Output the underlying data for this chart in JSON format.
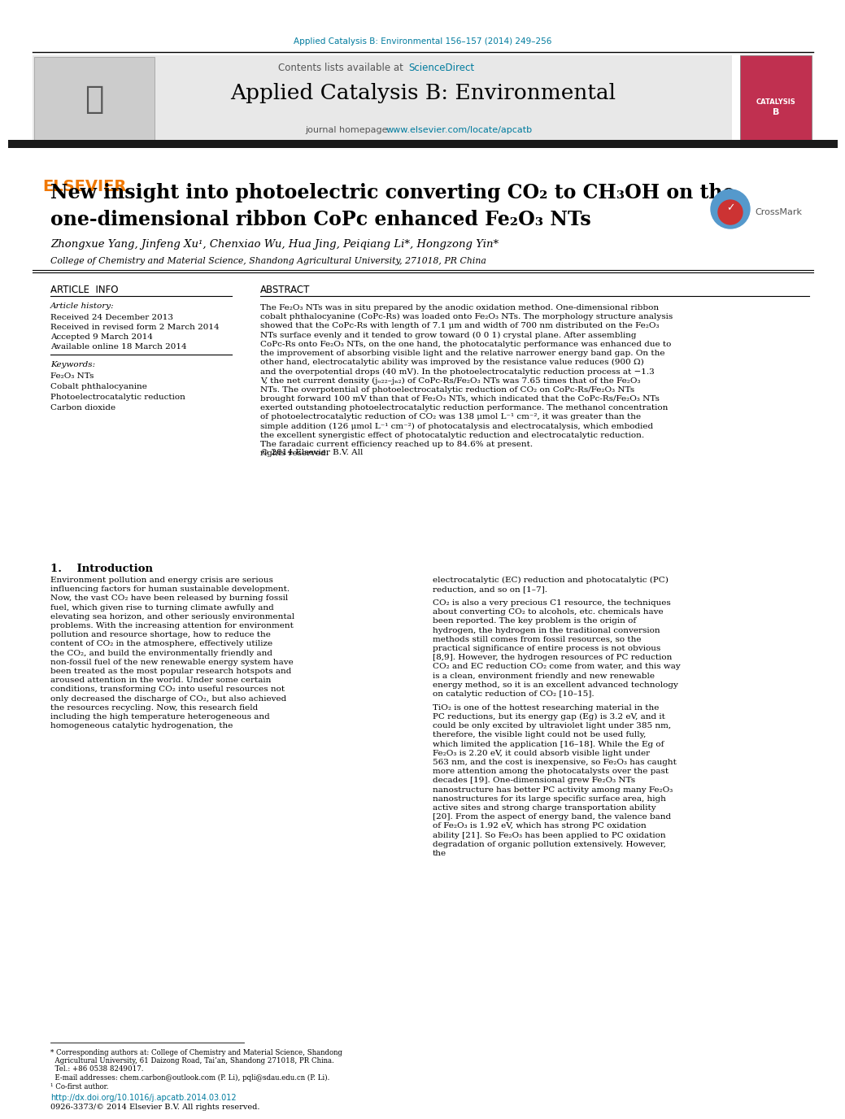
{
  "bg_color": "#ffffff",
  "top_citation": "Applied Catalysis B: Environmental 156–157 (2014) 249–256",
  "journal_name": "Applied Catalysis B: Environmental",
  "contents_text": "Contents lists available at ",
  "sciencedirect_link": "ScienceDirect",
  "sciencedirect_color": "#007b9e",
  "homepage_prefix": "journal homepage: ",
  "homepage_url": "www.elsevier.com/locate/apcatb",
  "elsevier_color": "#f07800",
  "header_bg": "#e8e8e8",
  "dark_bar_color": "#1a1a1a",
  "title_line1": "New insight into photoelectric converting CO₂ to CH₃OH on the",
  "title_line2": "one-dimensional ribbon CoPc enhanced Fe₂O₃ NTs",
  "authors": "Zhongxue Yang, Jinfeng Xu¹, Chenxiao Wu, Hua Jing, Peiqiang Li*, Hongzong Yin*",
  "affiliation": "College of Chemistry and Material Science, Shandong Agricultural University, 271018, PR China",
  "article_info_title": "ARTICLE  INFO",
  "abstract_title": "ABSTRACT",
  "article_history_label": "Article history:",
  "received": "Received 24 December 2013",
  "revised": "Received in revised form 2 March 2014",
  "accepted": "Accepted 9 March 2014",
  "available": "Available online 18 March 2014",
  "keywords_label": "Keywords:",
  "keywords": [
    "Fe₂O₃ NTs",
    "Cobalt phthalocyanine",
    "Photoelectrocatalytic reduction",
    "Carbon dioxide"
  ],
  "abstract_text": "The Fe₂O₃ NTs was in situ prepared by the anodic oxidation method. One-dimensional ribbon cobalt phthalocyanine (CoPc-Rs) was loaded onto Fe₂O₃ NTs. The morphology structure analysis showed that the CoPc-Rs with length of 7.1 μm and width of 700 nm distributed on the Fe₂O₃ NTs surface evenly and it tended to grow toward (0 0 1) crystal plane. After assembling CoPc-Rs onto Fe₂O₃ NTs, on the one hand, the photocatalytic performance was enhanced due to the improvement of absorbing visible light and the relative narrower energy band gap. On the other hand, electrocatalytic ability was improved by the resistance value reduces (900 Ω) and the overpotential drops (40 mV). In the photoelectrocatalytic reduction process at −1.3 V, the net current density (jₒ₂₂–jₙ₂) of CoPc-Rs/Fe₂O₃ NTs was 7.65 times that of the Fe₂O₃ NTs. The overpotential of photoelectrocatalytic reduction of CO₂ on CoPc-Rs/Fe₂O₃ NTs brought forward 100 mV than that of Fe₂O₃ NTs, which indicated that the CoPc-Rs/Fe₂O₃ NTs exerted outstanding photoelectrocatalytic reduction performance. The methanol concentration of photoelectrocatalytic reduction of CO₂ was 138 μmol L⁻¹ cm⁻², it was greater than the simple addition (126 μmol L⁻¹ cm⁻²) of photocatalysis and electrocatalysis, which embodied the excellent synergistic effect of photocatalytic reduction and electrocatalytic reduction. The faradaic current efficiency reached up to 84.6% at present.\n© 2014 Elsevier B.V. All rights reserved.",
  "intro_title": "1.    Introduction",
  "intro_col1": "    Environment pollution and energy crisis are serious influencing factors for human sustainable development. Now, the vast CO₂ have been released by burning fossil fuel, which given rise to turning climate awfully and elevating sea horizon, and other seriously environmental problems. With the increasing attention for environment pollution and resource shortage, how to reduce the content of CO₂ in the atmosphere, effectively utilize the CO₂, and build the environmentally friendly and non-fossil fuel of the new renewable energy system have been treated as the most popular research hotspots and aroused attention in the world. Under some certain conditions, transforming CO₂ into useful resources not only decreased the discharge of CO₂, but also achieved the resources recycling. Now, this research field including the high temperature heterogeneous and homogeneous catalytic hydrogenation, the",
  "intro_col2_p1": "electrocatalytic (EC) reduction and photocatalytic (PC) reduction, and so on [1–7].",
  "intro_col2_p2": "    CO₂ is also a very precious C1 resource, the techniques about converting CO₂ to alcohols, etc. chemicals have been reported. The key problem is the origin of hydrogen, the hydrogen in the traditional conversion methods still comes from fossil resources, so the practical significance of entire process is not obvious [8,9]. However, the hydrogen resources of PC reduction CO₂ and EC reduction CO₂ come from water, and this way is a clean, environment friendly and new renewable energy method, so it is an excellent advanced technology on catalytic reduction of CO₂ [10–15].",
  "intro_col2_p3": "    TiO₂ is one of the hottest researching material in the PC reductions, but its energy gap (Eg) is 3.2 eV, and it could be only excited by ultraviolet light under 385 nm, therefore, the visible light could not be used fully, which limited the application [16–18]. While the Eg of Fe₂O₃ is 2.20 eV, it could absorb visible light under 563 nm, and the cost is inexpensive, so Fe₂O₃ has caught more attention among the photocatalysts over the past decades [19]. One-dimensional grew Fe₂O₃ NTs nanostructure has better PC activity among many Fe₂O₃ nanostructures for its large specific surface area, high active sites and strong charge transportation ability [20]. From the aspect of energy band, the valence band of Fe₂O₃ is 1.92 eV, which has strong PC oxidation ability [21]. So Fe₂O₃ has been applied to PC oxidation degradation of organic pollution extensively. However, the",
  "footnote1": "* Corresponding authors at: College of Chemistry and Material Science, Shandong",
  "footnote1b": "  Agricultural University, 61 Daizong Road, Tai’an, Shandong 271018, PR China.",
  "footnote1c": "  Tel.: +86 0538 8249017.",
  "footnote2": "  E-mail addresses: chem.carbon@outlook.com (P. Li), pqli@sdau.edu.cn (P. Li).",
  "footnote3": "¹ Co-first author.",
  "doi": "http://dx.doi.org/10.1016/j.apcatb.2014.03.012",
  "issn": "0926-3373/© 2014 Elsevier B.V. All rights reserved."
}
